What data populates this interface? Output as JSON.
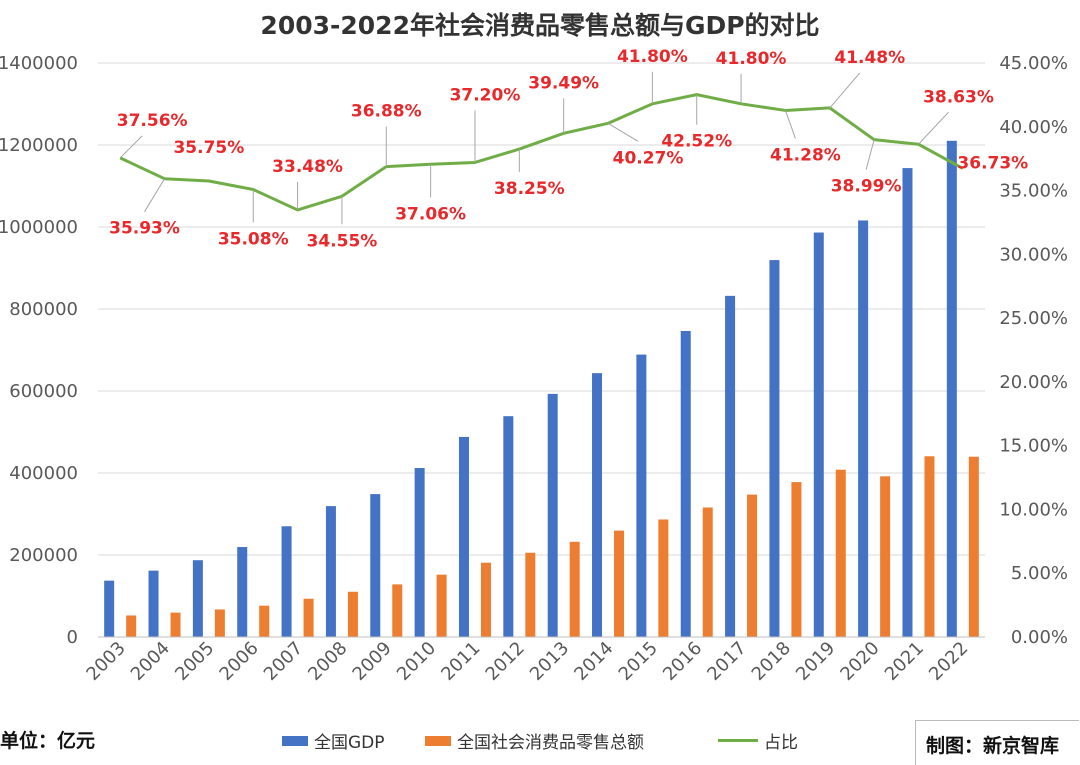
{
  "chart_data": {
    "type": "bar",
    "title": "2003-2022年社会消费品零售总额与GDP的对比",
    "categories": [
      "2003",
      "2004",
      "2005",
      "2006",
      "2007",
      "2008",
      "2009",
      "2010",
      "2011",
      "2012",
      "2013",
      "2014",
      "2015",
      "2016",
      "2017",
      "2018",
      "2019",
      "2020",
      "2021",
      "2022"
    ],
    "series": [
      {
        "name": "全国GDP",
        "type": "bar",
        "axis": "left",
        "color": "#4472C4",
        "values": [
          137422,
          161840,
          187319,
          219439,
          270092,
          319245,
          348518,
          412119,
          487940,
          538580,
          592963,
          643563,
          688858,
          746395,
          832036,
          919281,
          986515,
          1015986,
          1143670,
          1210207
        ]
      },
      {
        "name": "全国社会消费品零售总额",
        "type": "bar",
        "axis": "left",
        "color": "#ED7D31",
        "values": [
          52516,
          59501,
          67177,
          76410,
          93317,
          110313,
          128331,
          152083,
          181226,
          205517,
          232253,
          259487,
          286588,
          315806,
          347327,
          377783,
          408017,
          391981,
          440823,
          439733
        ]
      },
      {
        "name": "占比",
        "type": "line",
        "axis": "right",
        "color": "#70AD47",
        "values": [
          37.56,
          35.93,
          35.75,
          35.08,
          33.48,
          34.55,
          36.88,
          37.06,
          37.2,
          38.25,
          39.49,
          40.27,
          41.8,
          42.52,
          41.8,
          41.28,
          41.48,
          38.99,
          38.63,
          36.73
        ],
        "labels": [
          "37.56%",
          "35.93%",
          "35.75%",
          "35.08%",
          "33.48%",
          "34.55%",
          "36.88%",
          "37.06%",
          "37.20%",
          "38.25%",
          "39.49%",
          "40.27%",
          "41.80%",
          "42.52%",
          "41.80%",
          "41.28%",
          "41.48%",
          "38.99%",
          "38.63%",
          "36.73%"
        ]
      }
    ],
    "y_left": {
      "range": [
        0,
        1400000
      ],
      "ticks": [
        "0",
        "200000",
        "400000",
        "600000",
        "800000",
        "1000000",
        "1200000",
        "1400000"
      ]
    },
    "y_right": {
      "range": [
        0,
        45
      ],
      "ticks": [
        "0.00%",
        "5.00%",
        "10.00%",
        "15.00%",
        "20.00%",
        "25.00%",
        "30.00%",
        "35.00%",
        "40.00%",
        "45.00%"
      ]
    },
    "grid": true,
    "legend_position": "bottom",
    "label_color": "#E8282B"
  },
  "unit_note": "单位：亿元",
  "credit": "制图：新京智库"
}
